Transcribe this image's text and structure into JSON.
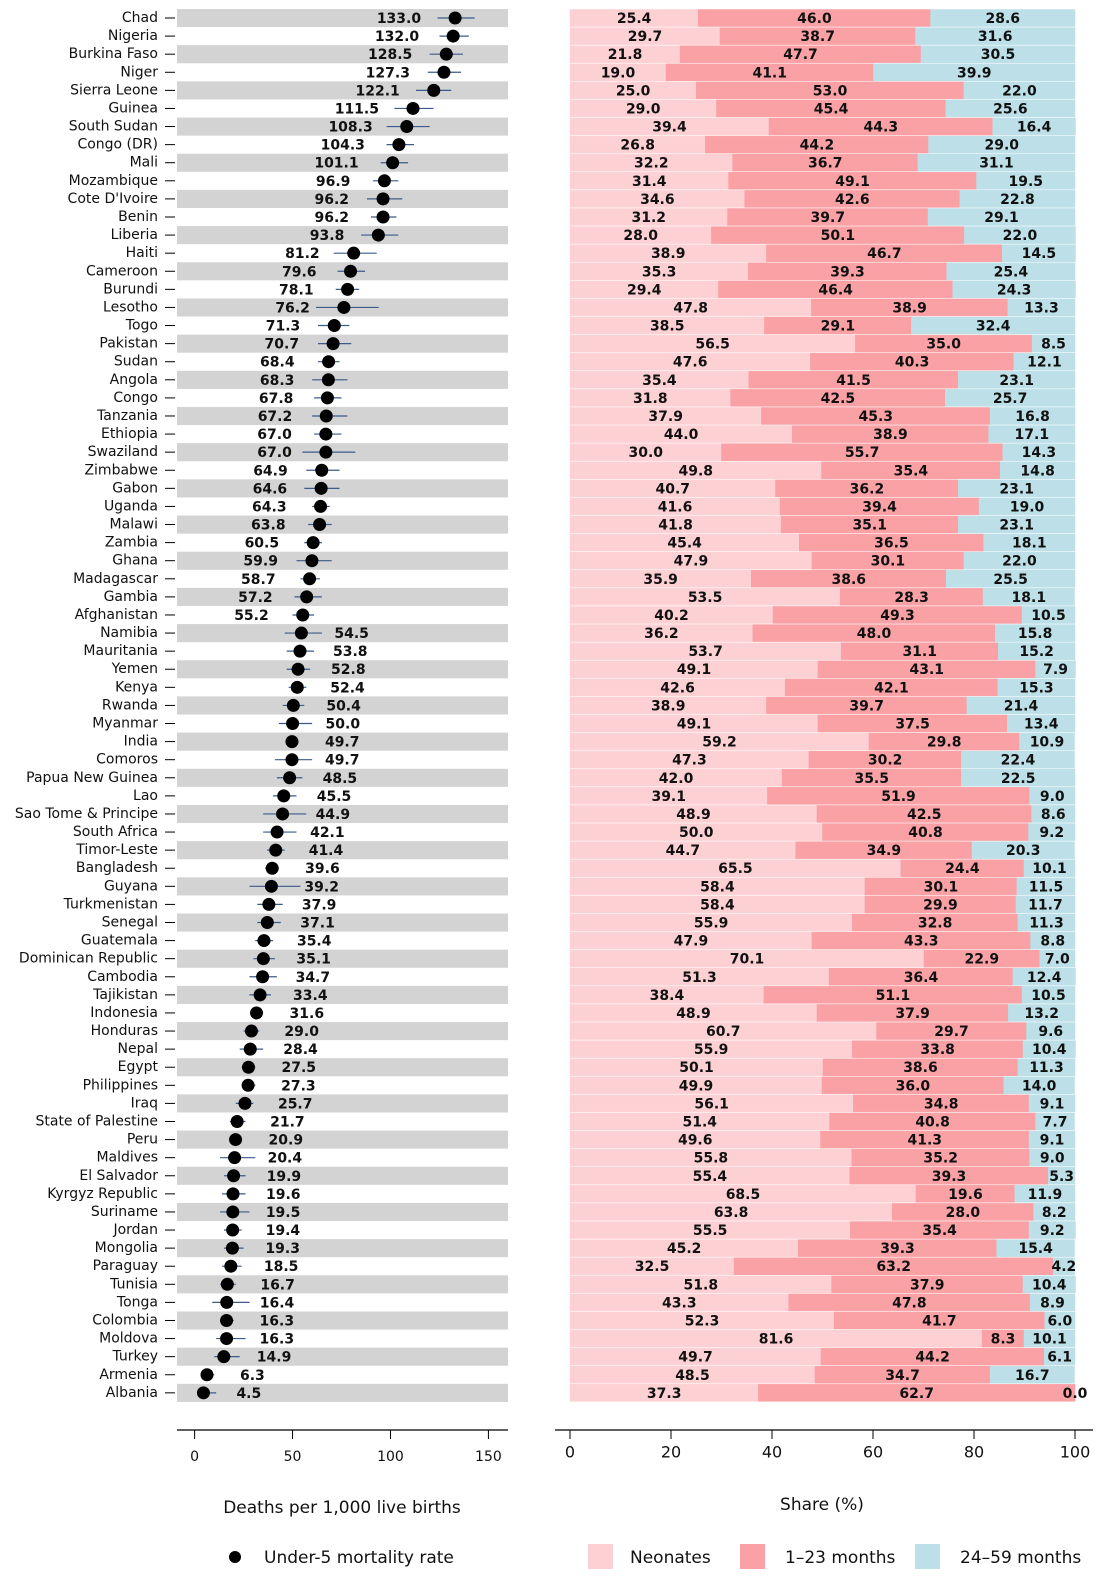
{
  "chart_data": [
    {
      "type": "dot",
      "categories": [
        "Chad",
        "Nigeria",
        "Burkina Faso",
        "Niger",
        "Sierra Leone",
        "Guinea",
        "South Sudan",
        "Congo (DR)",
        "Mali",
        "Mozambique",
        "Cote D'Ivoire",
        "Benin",
        "Liberia",
        "Haiti",
        "Cameroon",
        "Burundi",
        "Lesotho",
        "Togo",
        "Pakistan",
        "Sudan",
        "Angola",
        "Congo",
        "Tanzania",
        "Ethiopia",
        "Swaziland",
        "Zimbabwe",
        "Gabon",
        "Uganda",
        "Malawi",
        "Zambia",
        "Ghana",
        "Madagascar",
        "Gambia",
        "Afghanistan",
        "Namibia",
        "Mauritania",
        "Yemen",
        "Kenya",
        "Rwanda",
        "Myanmar",
        "India",
        "Comoros",
        "Papua New Guinea",
        "Lao",
        "Sao Tome & Principe",
        "South Africa",
        "Timor-Leste",
        "Bangladesh",
        "Guyana",
        "Turkmenistan",
        "Senegal",
        "Guatemala",
        "Dominican Republic",
        "Cambodia",
        "Tajikistan",
        "Indonesia",
        "Honduras",
        "Nepal",
        "Egypt",
        "Philippines",
        "Iraq",
        "State of Palestine",
        "Peru",
        "Maldives",
        "El Salvador",
        "Kyrgyz Republic",
        "Suriname",
        "Jordan",
        "Mongolia",
        "Paraguay",
        "Tunisia",
        "Tonga",
        "Colombia",
        "Moldova",
        "Turkey",
        "Armenia",
        "Albania"
      ],
      "values": [
        133.0,
        132.0,
        128.5,
        127.3,
        122.1,
        111.5,
        108.3,
        104.3,
        101.1,
        96.9,
        96.2,
        96.2,
        93.8,
        81.2,
        79.6,
        78.1,
        76.2,
        71.3,
        70.7,
        68.4,
        68.3,
        67.8,
        67.2,
        67.0,
        67.0,
        64.9,
        64.6,
        64.3,
        63.8,
        60.5,
        59.9,
        58.7,
        57.2,
        55.2,
        54.5,
        53.8,
        52.8,
        52.4,
        50.4,
        50.0,
        49.7,
        49.7,
        48.5,
        45.5,
        44.9,
        42.1,
        41.4,
        39.6,
        39.2,
        37.9,
        37.1,
        35.4,
        35.1,
        34.7,
        33.4,
        31.6,
        29.0,
        28.4,
        27.5,
        27.3,
        25.7,
        21.7,
        20.9,
        20.4,
        19.9,
        19.6,
        19.5,
        19.4,
        19.3,
        18.5,
        16.7,
        16.4,
        16.3,
        16.3,
        14.9,
        6.3,
        4.5
      ],
      "value_labels": [
        "133.0",
        "132.0",
        "128.5",
        "127.3",
        "122.1",
        "111.5",
        "108.3",
        "104.3",
        "101.1",
        "96.9",
        "96.2",
        "96.2",
        "93.8",
        "81.2",
        "79.6",
        "78.1",
        "76.2",
        "71.3",
        "70.7",
        "68.4",
        "68.3",
        "67.8",
        "67.2",
        "67.0",
        "67.0",
        "64.9",
        "64.6",
        "64.3",
        "63.8",
        "60.5",
        "59.9",
        "58.7",
        "57.2",
        "55.2",
        "54.5",
        "53.8",
        "52.8",
        "52.4",
        "50.4",
        "50.0",
        "49.7",
        "49.7",
        "48.5",
        "45.5",
        "44.9",
        "42.1",
        "41.4",
        "39.6",
        "39.2",
        "37.9",
        "37.1",
        "35.4",
        "35.1",
        "34.7",
        "33.4",
        "31.6",
        "29.0",
        "28.4",
        "27.5",
        "27.3",
        "25.7",
        "21.7",
        "20.9",
        "20.4",
        "19.9",
        "19.6",
        "19.5",
        "19.4",
        "19.3",
        "18.5",
        "16.7",
        "16.4",
        "16.3",
        "16.3",
        "14.9",
        "6.3",
        "4.5"
      ],
      "ci_lower": [
        124,
        125,
        120,
        119,
        113,
        102,
        98,
        98,
        95,
        91,
        88,
        90,
        85,
        71,
        73,
        72,
        62,
        63,
        63,
        63,
        60,
        61,
        60,
        61,
        55,
        57,
        56,
        60,
        58,
        56,
        52,
        54,
        51,
        50,
        46,
        47,
        47,
        48,
        45,
        43,
        47,
        41,
        42,
        40,
        35,
        35,
        37,
        36,
        28,
        32,
        32,
        31,
        30,
        28,
        28,
        29,
        25,
        23,
        24,
        24,
        21,
        18,
        18,
        13,
        15,
        14,
        13,
        15,
        15,
        14,
        13,
        9,
        13,
        11,
        10,
        4,
        2
      ],
      "ci_upper": [
        143,
        140,
        137,
        136,
        131,
        122,
        120,
        112,
        109,
        104,
        106,
        103,
        104,
        93,
        87,
        84,
        94,
        79,
        80,
        74,
        78,
        75,
        78,
        75,
        82,
        74,
        74,
        69,
        70,
        65,
        70,
        64,
        65,
        61,
        65,
        61,
        59,
        57,
        56,
        60,
        53,
        60,
        55,
        52,
        57,
        52,
        46,
        43,
        54,
        45,
        44,
        40,
        41,
        42,
        39,
        35,
        33,
        35,
        31,
        31,
        30,
        26,
        24,
        31,
        26,
        26,
        28,
        24,
        25,
        24,
        21,
        28,
        20,
        26,
        23,
        10,
        11
      ],
      "color": "#000000",
      "error_color": "#3b5b8a",
      "band_color": "#d3d3d3",
      "xlabel": "Deaths per 1,000 live births",
      "legend": "Under-5 mortality rate",
      "xlim": [
        -9,
        160
      ],
      "xticks": [
        0,
        50,
        100,
        150
      ]
    },
    {
      "type": "stacked_bar",
      "orientation": "horizontal",
      "xlabel": "Share (%)",
      "xlim": [
        0,
        100
      ],
      "xticks": [
        0,
        20,
        40,
        60,
        80,
        100
      ],
      "series": [
        {
          "name": "Neonates",
          "color": "#fdd1d4",
          "values": [
            25.4,
            29.7,
            21.8,
            19.0,
            25.0,
            29.0,
            39.4,
            26.8,
            32.2,
            31.4,
            34.6,
            31.2,
            28.0,
            38.9,
            35.3,
            29.4,
            47.8,
            38.5,
            56.5,
            47.6,
            35.4,
            31.8,
            37.9,
            44.0,
            30.0,
            49.8,
            40.7,
            41.6,
            41.8,
            45.4,
            47.9,
            35.9,
            53.5,
            40.2,
            36.2,
            53.7,
            49.1,
            42.6,
            38.9,
            49.1,
            59.2,
            47.3,
            42.0,
            39.1,
            48.9,
            50.0,
            44.7,
            65.5,
            58.4,
            58.4,
            55.9,
            47.9,
            70.1,
            51.3,
            38.4,
            48.9,
            60.7,
            55.9,
            50.1,
            49.9,
            56.1,
            51.4,
            49.6,
            55.8,
            55.4,
            68.5,
            63.8,
            55.5,
            45.2,
            32.5,
            51.8,
            43.3,
            52.3,
            81.6,
            49.7,
            48.5,
            37.3
          ],
          "value_labels": [
            "25.4",
            "29.7",
            "21.8",
            "19.0",
            "25.0",
            "29.0",
            "39.4",
            "26.8",
            "32.2",
            "31.4",
            "34.6",
            "31.2",
            "28.0",
            "38.9",
            "35.3",
            "29.4",
            "47.8",
            "38.5",
            "56.5",
            "47.6",
            "35.4",
            "31.8",
            "37.9",
            "44.0",
            "30.0",
            "49.8",
            "40.7",
            "41.6",
            "41.8",
            "45.4",
            "47.9",
            "35.9",
            "53.5",
            "40.2",
            "36.2",
            "53.7",
            "49.1",
            "42.6",
            "38.9",
            "49.1",
            "59.2",
            "47.3",
            "42.0",
            "39.1",
            "48.9",
            "50.0",
            "44.7",
            "65.5",
            "58.4",
            "58.4",
            "55.9",
            "47.9",
            "70.1",
            "51.3",
            "38.4",
            "48.9",
            "60.7",
            "55.9",
            "50.1",
            "49.9",
            "56.1",
            "51.4",
            "49.6",
            "55.8",
            "55.4",
            "68.5",
            "63.8",
            "55.5",
            "45.2",
            "32.5",
            "51.8",
            "43.3",
            "52.3",
            "81.6",
            "49.7",
            "48.5",
            "37.3"
          ]
        },
        {
          "name": "1–23 months",
          "color": "#f9a1a5",
          "values": [
            46.0,
            38.7,
            47.7,
            41.1,
            53.0,
            45.4,
            44.3,
            44.2,
            36.7,
            49.1,
            42.6,
            39.7,
            50.1,
            46.7,
            39.3,
            46.4,
            38.9,
            29.1,
            35.0,
            40.3,
            41.5,
            42.5,
            45.3,
            38.9,
            55.7,
            35.4,
            36.2,
            39.4,
            35.1,
            36.5,
            30.1,
            38.6,
            28.3,
            49.3,
            48.0,
            31.1,
            43.1,
            42.1,
            39.7,
            37.5,
            29.8,
            30.2,
            35.5,
            51.9,
            42.5,
            40.8,
            34.9,
            24.4,
            30.1,
            29.9,
            32.8,
            43.3,
            22.9,
            36.4,
            51.1,
            37.9,
            29.7,
            33.8,
            38.6,
            36.0,
            34.8,
            40.8,
            41.3,
            35.2,
            39.3,
            19.6,
            28.0,
            35.4,
            39.3,
            63.2,
            37.9,
            47.8,
            41.7,
            8.3,
            44.2,
            34.7,
            62.7
          ],
          "value_labels": [
            "46.0",
            "38.7",
            "47.7",
            "41.1",
            "53.0",
            "45.4",
            "44.3",
            "44.2",
            "36.7",
            "49.1",
            "42.6",
            "39.7",
            "50.1",
            "46.7",
            "39.3",
            "46.4",
            "38.9",
            "29.1",
            "35.0",
            "40.3",
            "41.5",
            "42.5",
            "45.3",
            "38.9",
            "55.7",
            "35.4",
            "36.2",
            "39.4",
            "35.1",
            "36.5",
            "30.1",
            "38.6",
            "28.3",
            "49.3",
            "48.0",
            "31.1",
            "43.1",
            "42.1",
            "39.7",
            "37.5",
            "29.8",
            "30.2",
            "35.5",
            "51.9",
            "42.5",
            "40.8",
            "34.9",
            "24.4",
            "30.1",
            "29.9",
            "32.8",
            "43.3",
            "22.9",
            "36.4",
            "51.1",
            "37.9",
            "29.7",
            "33.8",
            "38.6",
            "36.0",
            "34.8",
            "40.8",
            "41.3",
            "35.2",
            "39.3",
            "19.6",
            "28.0",
            "35.4",
            "39.3",
            "63.2",
            "37.9",
            "47.8",
            "41.7",
            "8.3",
            "44.2",
            "34.7",
            "62.7"
          ]
        },
        {
          "name": "24–59 months",
          "color": "#bcdfe8",
          "values": [
            28.6,
            31.6,
            30.5,
            39.9,
            22.0,
            25.6,
            16.4,
            29.0,
            31.1,
            19.5,
            22.8,
            29.1,
            22.0,
            14.5,
            25.4,
            24.3,
            13.3,
            32.4,
            8.5,
            12.1,
            23.1,
            25.7,
            16.8,
            17.1,
            14.3,
            14.8,
            23.1,
            19.0,
            23.1,
            18.1,
            22.0,
            25.5,
            18.1,
            10.5,
            15.8,
            15.2,
            7.9,
            15.3,
            21.4,
            13.4,
            10.9,
            22.4,
            22.5,
            9.0,
            8.6,
            9.2,
            20.3,
            10.1,
            11.5,
            11.7,
            11.3,
            8.8,
            7.0,
            12.4,
            10.5,
            13.2,
            9.6,
            10.4,
            11.3,
            14.0,
            9.1,
            7.7,
            9.1,
            9.0,
            5.3,
            11.9,
            8.2,
            9.2,
            15.4,
            4.2,
            10.4,
            8.9,
            6.0,
            10.1,
            6.1,
            16.7,
            0.0
          ],
          "value_labels": [
            "28.6",
            "31.6",
            "30.5",
            "39.9",
            "22.0",
            "25.6",
            "16.4",
            "29.0",
            "31.1",
            "19.5",
            "22.8",
            "29.1",
            "22.0",
            "14.5",
            "25.4",
            "24.3",
            "13.3",
            "32.4",
            "8.5",
            "12.1",
            "23.1",
            "25.7",
            "16.8",
            "17.1",
            "14.3",
            "14.8",
            "23.1",
            "19.0",
            "23.1",
            "18.1",
            "22.0",
            "25.5",
            "18.1",
            "10.5",
            "15.8",
            "15.2",
            "7.9",
            "15.3",
            "21.4",
            "13.4",
            "10.9",
            "22.4",
            "22.5",
            "9.0",
            "8.6",
            "9.2",
            "20.3",
            "10.1",
            "11.5",
            "11.7",
            "11.3",
            "8.8",
            "7.0",
            "12.4",
            "10.5",
            "13.2",
            "9.6",
            "10.4",
            "11.3",
            "14.0",
            "9.1",
            "7.7",
            "9.1",
            "9.0",
            "5.3",
            "11.9",
            "8.2",
            "9.2",
            "15.4",
            "4.2",
            "10.4",
            "8.9",
            "6.0",
            "10.1",
            "6.1",
            "16.7",
            "0.0"
          ]
        }
      ]
    }
  ]
}
